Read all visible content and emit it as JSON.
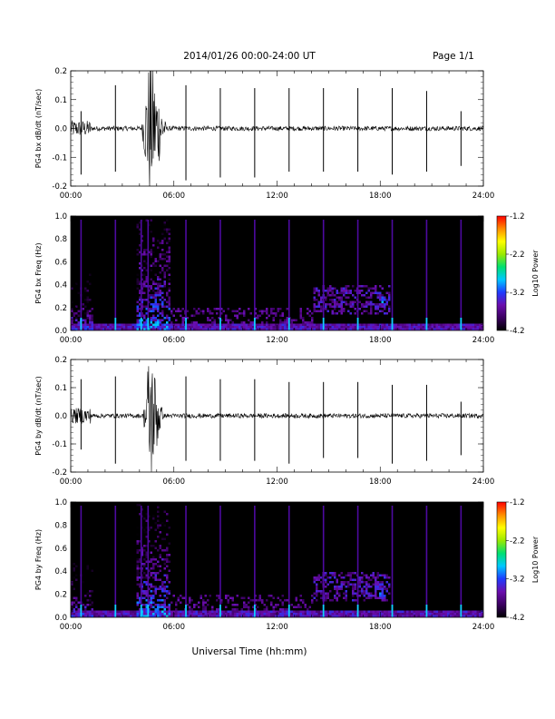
{
  "header": {
    "title": "2014/01/26  00:00-24:00 UT",
    "page": "Page 1/1"
  },
  "colors": {
    "trace": "#000000",
    "background_spectrogram": "#000000",
    "colorbar_stops": [
      "#000000",
      "#3a0060",
      "#6a0dad",
      "#1f3bff",
      "#00c8ff",
      "#00e070",
      "#9bea00",
      "#ffff00",
      "#ff8c00",
      "#ff0000"
    ]
  },
  "chart_data": [
    {
      "type": "line",
      "ylabel": "PG4 bx dB/dt (nT/sec)",
      "xlim": [
        0,
        24
      ],
      "ylim": [
        -0.2,
        0.2
      ],
      "y_ticks": [
        "-0.2",
        "-0.1",
        "0.0",
        "0.1",
        "0.2"
      ],
      "x_ticks": [
        "00:00",
        "06:00",
        "12:00",
        "18:00",
        "24:00"
      ],
      "noise_level": 0.008,
      "series": [
        {
          "spikes": [
            {
              "t": 0.6,
              "min": -0.16,
              "max": 0.06
            },
            {
              "t": 2.6,
              "min": -0.15,
              "max": 0.15
            },
            {
              "t": 6.7,
              "min": -0.18,
              "max": 0.15
            },
            {
              "t": 8.7,
              "min": -0.17,
              "max": 0.14
            },
            {
              "t": 10.7,
              "min": -0.17,
              "max": 0.14
            },
            {
              "t": 12.7,
              "min": -0.15,
              "max": 0.14
            },
            {
              "t": 14.7,
              "min": -0.15,
              "max": 0.14
            },
            {
              "t": 16.7,
              "min": -0.15,
              "max": 0.14
            },
            {
              "t": 18.7,
              "min": -0.16,
              "max": 0.14
            },
            {
              "t": 20.7,
              "min": -0.15,
              "max": 0.13
            },
            {
              "t": 22.7,
              "min": -0.13,
              "max": 0.06
            }
          ],
          "burst": {
            "start": 4.1,
            "peak": 4.6,
            "end": 5.6,
            "amplitude": 0.22
          }
        }
      ]
    },
    {
      "type": "heatmap",
      "ylabel": "PG4 bx Freq (Hz)",
      "xlim": [
        0,
        24
      ],
      "ylim": [
        0.0,
        1.0
      ],
      "y_ticks": [
        "0.0",
        "0.2",
        "0.4",
        "0.6",
        "0.8",
        "1.0"
      ],
      "x_ticks": [
        "00:00",
        "06:00",
        "12:00",
        "18:00",
        "24:00"
      ],
      "colorbar": {
        "label": "Log10 Power",
        "range": [
          -4.2,
          -1.2
        ],
        "ticks": [
          "-1.2",
          "-2.2",
          "-3.2",
          "-4.2"
        ]
      },
      "feature_times": [
        0.6,
        2.6,
        4.1,
        4.5,
        6.7,
        8.7,
        10.7,
        12.7,
        14.7,
        16.7,
        18.7,
        20.7,
        22.7
      ],
      "features": [
        {
          "kind": "broadband",
          "t0": 3.8,
          "t1": 5.8,
          "fmax": 1.0,
          "level": -3.0
        },
        {
          "kind": "broadband",
          "t0": 0.0,
          "t1": 1.2,
          "fmax": 0.55,
          "level": -3.3
        },
        {
          "kind": "patch",
          "t0": 14.0,
          "t1": 18.5,
          "f0": 0.15,
          "f1": 0.4,
          "level": -3.6
        },
        {
          "kind": "patch",
          "t0": 17.8,
          "t1": 18.3,
          "f0": 0.2,
          "f1": 0.3,
          "level": -3.2
        }
      ]
    },
    {
      "type": "line",
      "ylabel": "PG4 by dB/dt (nT/sec)",
      "xlim": [
        0,
        24
      ],
      "ylim": [
        -0.2,
        0.2
      ],
      "y_ticks": [
        "-0.2",
        "-0.1",
        "0.0",
        "0.1",
        "0.2"
      ],
      "x_ticks": [
        "00:00",
        "06:00",
        "12:00",
        "18:00",
        "24:00"
      ],
      "noise_level": 0.008,
      "series": [
        {
          "spikes": [
            {
              "t": 0.6,
              "min": -0.12,
              "max": 0.13
            },
            {
              "t": 2.6,
              "min": -0.17,
              "max": 0.14
            },
            {
              "t": 6.7,
              "min": -0.16,
              "max": 0.14
            },
            {
              "t": 8.7,
              "min": -0.16,
              "max": 0.13
            },
            {
              "t": 10.7,
              "min": -0.16,
              "max": 0.13
            },
            {
              "t": 12.7,
              "min": -0.17,
              "max": 0.12
            },
            {
              "t": 14.7,
              "min": -0.15,
              "max": 0.12
            },
            {
              "t": 16.7,
              "min": -0.15,
              "max": 0.12
            },
            {
              "t": 18.7,
              "min": -0.17,
              "max": 0.11
            },
            {
              "t": 20.7,
              "min": -0.16,
              "max": 0.11
            },
            {
              "t": 22.7,
              "min": -0.14,
              "max": 0.05
            }
          ],
          "burst": {
            "start": 4.2,
            "peak": 4.6,
            "end": 5.4,
            "amplitude": 0.22
          }
        }
      ]
    },
    {
      "type": "heatmap",
      "ylabel": "PG4 by Freq (Hz)",
      "xlim": [
        0,
        24
      ],
      "ylim": [
        0.0,
        1.0
      ],
      "y_ticks": [
        "0.0",
        "0.2",
        "0.4",
        "0.6",
        "0.8",
        "1.0"
      ],
      "x_ticks": [
        "00:00",
        "06:00",
        "12:00",
        "18:00",
        "24:00"
      ],
      "colorbar": {
        "label": "Log10 Power",
        "range": [
          -4.2,
          -1.2
        ],
        "ticks": [
          "-1.2",
          "-2.2",
          "-3.2",
          "-4.2"
        ]
      },
      "feature_times": [
        0.6,
        2.6,
        4.1,
        4.5,
        6.7,
        8.7,
        10.7,
        12.7,
        14.7,
        16.7,
        18.7,
        20.7,
        22.7
      ],
      "features": [
        {
          "kind": "broadband",
          "t0": 3.8,
          "t1": 5.8,
          "fmax": 1.0,
          "level": -3.0
        },
        {
          "kind": "broadband",
          "t0": 0.0,
          "t1": 1.2,
          "fmax": 0.5,
          "level": -3.3
        },
        {
          "kind": "patch",
          "t0": 14.0,
          "t1": 18.5,
          "f0": 0.15,
          "f1": 0.4,
          "level": -3.6
        },
        {
          "kind": "patch",
          "t0": 17.8,
          "t1": 18.3,
          "f0": 0.18,
          "f1": 0.3,
          "level": -3.3
        }
      ]
    }
  ],
  "footer": {
    "xlabel": "Universal Time (hh:mm)"
  }
}
